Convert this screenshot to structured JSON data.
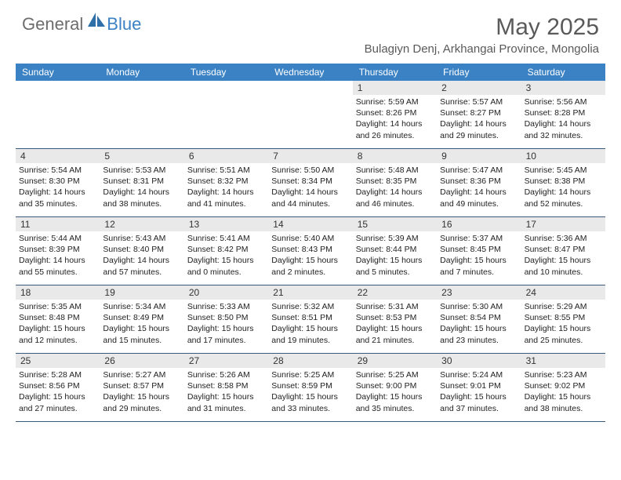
{
  "brand": {
    "part1": "General",
    "part2": "Blue"
  },
  "title": "May 2025",
  "subtitle": "Bulagiyn Denj, Arkhangai Province, Mongolia",
  "colors": {
    "header_bar": "#3b82c4",
    "header_text": "#ffffff",
    "date_bg": "#e9e9e9",
    "title_color": "#5a5a5a",
    "border": "#3b5a7a"
  },
  "day_names": [
    "Sunday",
    "Monday",
    "Tuesday",
    "Wednesday",
    "Thursday",
    "Friday",
    "Saturday"
  ],
  "weeks": [
    [
      {
        "date": "",
        "empty": true
      },
      {
        "date": "",
        "empty": true
      },
      {
        "date": "",
        "empty": true
      },
      {
        "date": "",
        "empty": true
      },
      {
        "date": "1",
        "sunrise": "5:59 AM",
        "sunset": "8:26 PM",
        "daylight_a": "Daylight: 14 hours",
        "daylight_b": "and 26 minutes."
      },
      {
        "date": "2",
        "sunrise": "5:57 AM",
        "sunset": "8:27 PM",
        "daylight_a": "Daylight: 14 hours",
        "daylight_b": "and 29 minutes."
      },
      {
        "date": "3",
        "sunrise": "5:56 AM",
        "sunset": "8:28 PM",
        "daylight_a": "Daylight: 14 hours",
        "daylight_b": "and 32 minutes."
      }
    ],
    [
      {
        "date": "4",
        "sunrise": "5:54 AM",
        "sunset": "8:30 PM",
        "daylight_a": "Daylight: 14 hours",
        "daylight_b": "and 35 minutes."
      },
      {
        "date": "5",
        "sunrise": "5:53 AM",
        "sunset": "8:31 PM",
        "daylight_a": "Daylight: 14 hours",
        "daylight_b": "and 38 minutes."
      },
      {
        "date": "6",
        "sunrise": "5:51 AM",
        "sunset": "8:32 PM",
        "daylight_a": "Daylight: 14 hours",
        "daylight_b": "and 41 minutes."
      },
      {
        "date": "7",
        "sunrise": "5:50 AM",
        "sunset": "8:34 PM",
        "daylight_a": "Daylight: 14 hours",
        "daylight_b": "and 44 minutes."
      },
      {
        "date": "8",
        "sunrise": "5:48 AM",
        "sunset": "8:35 PM",
        "daylight_a": "Daylight: 14 hours",
        "daylight_b": "and 46 minutes."
      },
      {
        "date": "9",
        "sunrise": "5:47 AM",
        "sunset": "8:36 PM",
        "daylight_a": "Daylight: 14 hours",
        "daylight_b": "and 49 minutes."
      },
      {
        "date": "10",
        "sunrise": "5:45 AM",
        "sunset": "8:38 PM",
        "daylight_a": "Daylight: 14 hours",
        "daylight_b": "and 52 minutes."
      }
    ],
    [
      {
        "date": "11",
        "sunrise": "5:44 AM",
        "sunset": "8:39 PM",
        "daylight_a": "Daylight: 14 hours",
        "daylight_b": "and 55 minutes."
      },
      {
        "date": "12",
        "sunrise": "5:43 AM",
        "sunset": "8:40 PM",
        "daylight_a": "Daylight: 14 hours",
        "daylight_b": "and 57 minutes."
      },
      {
        "date": "13",
        "sunrise": "5:41 AM",
        "sunset": "8:42 PM",
        "daylight_a": "Daylight: 15 hours",
        "daylight_b": "and 0 minutes."
      },
      {
        "date": "14",
        "sunrise": "5:40 AM",
        "sunset": "8:43 PM",
        "daylight_a": "Daylight: 15 hours",
        "daylight_b": "and 2 minutes."
      },
      {
        "date": "15",
        "sunrise": "5:39 AM",
        "sunset": "8:44 PM",
        "daylight_a": "Daylight: 15 hours",
        "daylight_b": "and 5 minutes."
      },
      {
        "date": "16",
        "sunrise": "5:37 AM",
        "sunset": "8:45 PM",
        "daylight_a": "Daylight: 15 hours",
        "daylight_b": "and 7 minutes."
      },
      {
        "date": "17",
        "sunrise": "5:36 AM",
        "sunset": "8:47 PM",
        "daylight_a": "Daylight: 15 hours",
        "daylight_b": "and 10 minutes."
      }
    ],
    [
      {
        "date": "18",
        "sunrise": "5:35 AM",
        "sunset": "8:48 PM",
        "daylight_a": "Daylight: 15 hours",
        "daylight_b": "and 12 minutes."
      },
      {
        "date": "19",
        "sunrise": "5:34 AM",
        "sunset": "8:49 PM",
        "daylight_a": "Daylight: 15 hours",
        "daylight_b": "and 15 minutes."
      },
      {
        "date": "20",
        "sunrise": "5:33 AM",
        "sunset": "8:50 PM",
        "daylight_a": "Daylight: 15 hours",
        "daylight_b": "and 17 minutes."
      },
      {
        "date": "21",
        "sunrise": "5:32 AM",
        "sunset": "8:51 PM",
        "daylight_a": "Daylight: 15 hours",
        "daylight_b": "and 19 minutes."
      },
      {
        "date": "22",
        "sunrise": "5:31 AM",
        "sunset": "8:53 PM",
        "daylight_a": "Daylight: 15 hours",
        "daylight_b": "and 21 minutes."
      },
      {
        "date": "23",
        "sunrise": "5:30 AM",
        "sunset": "8:54 PM",
        "daylight_a": "Daylight: 15 hours",
        "daylight_b": "and 23 minutes."
      },
      {
        "date": "24",
        "sunrise": "5:29 AM",
        "sunset": "8:55 PM",
        "daylight_a": "Daylight: 15 hours",
        "daylight_b": "and 25 minutes."
      }
    ],
    [
      {
        "date": "25",
        "sunrise": "5:28 AM",
        "sunset": "8:56 PM",
        "daylight_a": "Daylight: 15 hours",
        "daylight_b": "and 27 minutes."
      },
      {
        "date": "26",
        "sunrise": "5:27 AM",
        "sunset": "8:57 PM",
        "daylight_a": "Daylight: 15 hours",
        "daylight_b": "and 29 minutes."
      },
      {
        "date": "27",
        "sunrise": "5:26 AM",
        "sunset": "8:58 PM",
        "daylight_a": "Daylight: 15 hours",
        "daylight_b": "and 31 minutes."
      },
      {
        "date": "28",
        "sunrise": "5:25 AM",
        "sunset": "8:59 PM",
        "daylight_a": "Daylight: 15 hours",
        "daylight_b": "and 33 minutes."
      },
      {
        "date": "29",
        "sunrise": "5:25 AM",
        "sunset": "9:00 PM",
        "daylight_a": "Daylight: 15 hours",
        "daylight_b": "and 35 minutes."
      },
      {
        "date": "30",
        "sunrise": "5:24 AM",
        "sunset": "9:01 PM",
        "daylight_a": "Daylight: 15 hours",
        "daylight_b": "and 37 minutes."
      },
      {
        "date": "31",
        "sunrise": "5:23 AM",
        "sunset": "9:02 PM",
        "daylight_a": "Daylight: 15 hours",
        "daylight_b": "and 38 minutes."
      }
    ]
  ],
  "labels": {
    "sunrise_prefix": "Sunrise: ",
    "sunset_prefix": "Sunset: "
  }
}
